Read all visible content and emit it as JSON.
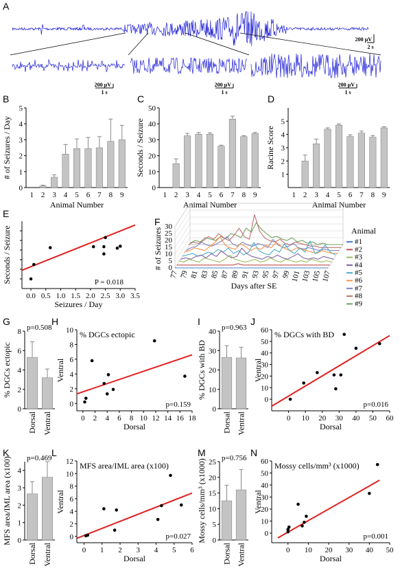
{
  "colors": {
    "eeg": "#1d1dd6",
    "bar": "#c4c4c4",
    "regression": "#e02020",
    "grid": "#bbbbbb",
    "series": [
      "#4a7fc1",
      "#c0504d",
      "#9bbb59",
      "#8064a2",
      "#4bacc6",
      "#f79646",
      "#7f7fbf",
      "#c07070",
      "#70a060"
    ]
  },
  "chart_data": [
    {
      "panel": "A",
      "type": "line",
      "scale_bars": {
        "main": [
          "200 µV",
          "2 s"
        ],
        "zoom1": [
          "200 µV",
          "1 s"
        ],
        "zoom2": [
          "200 µV",
          "1 s"
        ],
        "zoom3": [
          "200 µV",
          "1 s"
        ]
      }
    },
    {
      "panel": "B",
      "type": "bar",
      "ylabel": "# of Seizures / Day",
      "xlabel": "Animal Number",
      "categories": [
        "1",
        "2",
        "3",
        "4",
        "5",
        "6",
        "7",
        "8",
        "9"
      ],
      "values": [
        0,
        0.1,
        0.65,
        2.1,
        2.45,
        2.45,
        2.5,
        2.9,
        3.0
      ],
      "errors": [
        0,
        0.05,
        0.15,
        0.6,
        0.6,
        0.7,
        0.7,
        1.4,
        0.9
      ],
      "ylim": [
        0,
        5
      ],
      "yticks": [
        "0",
        "1",
        "2",
        "3",
        "4",
        "5"
      ]
    },
    {
      "panel": "C",
      "type": "bar",
      "ylabel": "Seconds / Seizure",
      "xlabel": "Animal Number",
      "categories": [
        "1",
        "2",
        "3",
        "4",
        "5",
        "6",
        "7",
        "8",
        "9"
      ],
      "values": [
        0,
        15,
        32.5,
        33.5,
        33.5,
        26,
        43,
        32,
        34
      ],
      "errors": [
        0,
        3,
        1.5,
        1,
        0.8,
        0.6,
        1.8,
        0.6,
        0.6
      ],
      "ylim": [
        0,
        50
      ],
      "yticks": [
        "0",
        "10",
        "20",
        "30",
        "40",
        "50"
      ]
    },
    {
      "panel": "D",
      "type": "bar",
      "ylabel": "Racine Score",
      "xlabel": "Animal Number",
      "categories": [
        "1",
        "2",
        "3",
        "4",
        "5",
        "6",
        "7",
        "8",
        "9"
      ],
      "values": [
        0,
        2.0,
        3.3,
        4.4,
        4.7,
        3.85,
        4.1,
        3.8,
        4.5
      ],
      "errors": [
        0,
        0.45,
        0.35,
        0.1,
        0.08,
        0.12,
        0.15,
        0.12,
        0.08
      ],
      "ylim": [
        0,
        6
      ],
      "yticks": [
        "1",
        "2",
        "3",
        "4",
        "5"
      ]
    },
    {
      "panel": "E",
      "type": "scatter",
      "xlabel": "Seizures / Day",
      "ylabel": "Seconds / Seizure",
      "annotation": "P = 0.018",
      "x": [
        0,
        0.1,
        0.65,
        2.1,
        2.45,
        2.45,
        2.5,
        2.9,
        3.0
      ],
      "y": [
        0,
        15,
        32.5,
        33.5,
        33.5,
        26,
        43,
        32,
        34
      ],
      "fit": [
        [
          -0.3,
          9.0
        ],
        [
          3.5,
          56.0
        ]
      ],
      "xlim": [
        -0.3,
        3.5
      ],
      "ylim": [
        -10,
        60
      ],
      "xticks": [
        "0.0",
        "0.5",
        "1.0",
        "1.5",
        "2.0",
        "2.5",
        "3.0",
        "3.5"
      ]
    },
    {
      "panel": "F",
      "type": "line",
      "xlabel": "Days after SE",
      "ylabel": "# of Seizures",
      "legend_title": "Animal",
      "series_names": [
        "#1",
        "#2",
        "#3",
        "#4",
        "#5",
        "#6",
        "#7",
        "#8",
        "#9"
      ],
      "xticks": [
        "77",
        "79",
        "81",
        "83",
        "85",
        "87",
        "89",
        "91",
        "93",
        "95",
        "97",
        "99",
        "101",
        "103",
        "105",
        "107"
      ],
      "zticks": [
        "0",
        "5",
        "10",
        "15",
        "20",
        "25",
        "30"
      ],
      "series_values": [
        [
          0,
          0,
          0,
          0,
          0,
          0,
          0,
          0,
          0,
          0,
          0,
          0,
          0,
          0,
          0,
          0,
          0,
          0,
          0,
          0,
          0,
          0,
          0,
          0,
          0,
          0,
          0,
          0,
          0,
          0,
          0
        ],
        [
          0,
          0,
          0,
          0,
          0,
          0,
          0,
          0,
          0,
          0,
          0,
          0,
          1,
          0,
          0,
          0,
          0,
          0,
          0,
          0,
          0,
          0,
          0,
          0,
          0,
          0,
          0,
          0,
          0,
          0,
          0
        ],
        [
          1,
          0,
          2,
          1,
          0,
          3,
          2,
          1,
          0,
          2,
          5,
          2,
          1,
          0,
          1,
          2,
          0,
          1,
          3,
          1,
          0,
          2,
          1,
          0,
          1,
          0,
          2,
          1,
          0,
          1,
          0
        ],
        [
          0,
          1,
          0,
          2,
          3,
          1,
          4,
          2,
          6,
          3,
          1,
          2,
          8,
          4,
          2,
          1,
          0,
          2,
          1,
          3,
          1,
          0,
          2,
          4,
          1,
          0,
          1,
          0,
          2,
          1,
          0
        ],
        [
          0,
          1,
          2,
          0,
          1,
          3,
          2,
          5,
          3,
          6,
          2,
          4,
          1,
          3,
          10,
          4,
          2,
          1,
          5,
          3,
          9,
          4,
          2,
          6,
          3,
          11,
          2,
          4,
          8,
          3,
          1
        ],
        [
          1,
          2,
          4,
          3,
          2,
          5,
          8,
          12,
          6,
          4,
          3,
          7,
          5,
          2,
          4,
          3,
          6,
          4,
          8,
          5,
          3,
          2,
          4,
          3,
          2,
          1,
          0,
          2,
          1,
          0,
          0
        ],
        [
          0,
          2,
          3,
          6,
          4,
          3,
          5,
          7,
          10,
          5,
          3,
          6,
          4,
          3,
          5,
          4,
          2,
          8,
          4,
          2,
          3,
          5,
          2,
          1,
          2,
          1,
          0,
          1,
          0,
          0,
          0
        ],
        [
          2,
          4,
          3,
          5,
          8,
          6,
          10,
          7,
          5,
          9,
          14,
          8,
          6,
          24,
          12,
          7,
          5,
          4,
          6,
          3,
          2,
          4,
          3,
          2,
          1,
          1,
          0,
          0,
          0,
          0,
          0
        ],
        [
          1,
          3,
          2,
          5,
          4,
          3,
          6,
          4,
          8,
          7,
          5,
          12,
          9,
          16,
          11,
          8,
          5,
          6,
          4,
          3,
          5,
          2,
          3,
          1,
          2,
          0,
          1,
          0,
          0,
          0,
          0
        ]
      ]
    },
    {
      "panel": "G",
      "type": "bar",
      "ylabel": "% DGCs ectopic",
      "annotation": "p=0.508",
      "categories": [
        "Dorsal",
        "Ventral"
      ],
      "values": [
        5.3,
        3.2
      ],
      "errors": [
        1.6,
        0.9
      ],
      "ylim": [
        0,
        8
      ],
      "yticks": [
        "0",
        "2",
        "4",
        "6",
        "8"
      ]
    },
    {
      "panel": "H",
      "type": "scatter",
      "title": "% DGCs ectopic",
      "xlabel": "Dorsal",
      "ylabel": "Ventral",
      "annotation": "p=0.159",
      "x": [
        0.3,
        0.5,
        1.5,
        3.5,
        4.0,
        4.2,
        5.0,
        11.8,
        16.8
      ],
      "y": [
        0.2,
        0.7,
        5.8,
        2.7,
        1.3,
        3.9,
        1.9,
        8.5,
        3.7
      ],
      "fit": [
        [
          -1,
          1.3
        ],
        [
          18,
          6.6
        ]
      ],
      "xlim": [
        -1,
        18
      ],
      "ylim": [
        -1,
        10
      ],
      "xticks": [
        "0",
        "2",
        "4",
        "6",
        "8",
        "10",
        "12",
        "14",
        "16",
        "18"
      ],
      "yticks": [
        "0",
        "2",
        "4",
        "6",
        "8",
        "10"
      ]
    },
    {
      "panel": "I",
      "type": "bar",
      "ylabel": "% DGCs with BD",
      "annotation": "p=0.963",
      "categories": [
        "Dorsal",
        "Ventral"
      ],
      "values": [
        26.5,
        26.2
      ],
      "errors": [
        6,
        5.5
      ],
      "ylim": [
        0,
        40
      ],
      "yticks": [
        "0",
        "10",
        "20",
        "30",
        "40"
      ]
    },
    {
      "panel": "J",
      "type": "scatter",
      "title": "% DGCs with BD",
      "xlabel": "Dorsal",
      "ylabel": "Ventral",
      "annotation": "p=0.016",
      "x": [
        1,
        9,
        17,
        27,
        28,
        31,
        33,
        40,
        54
      ],
      "y": [
        0,
        14,
        23,
        21,
        9,
        21,
        56,
        44,
        48
      ],
      "fit": [
        [
          -10,
          -6
        ],
        [
          60,
          55
        ]
      ],
      "xlim": [
        -10,
        60
      ],
      "ylim": [
        -10,
        60
      ],
      "xticks": [
        "0",
        "10",
        "20",
        "30",
        "40",
        "50",
        "60"
      ],
      "yticks": [
        "0",
        "10",
        "20",
        "30",
        "40",
        "50",
        "60"
      ]
    },
    {
      "panel": "K",
      "type": "bar",
      "ylabel": "MFS area/IML area (x100)",
      "annotation": "p=0.469",
      "categories": [
        "Dorsal",
        "Ventral"
      ],
      "values": [
        2.65,
        3.6
      ],
      "errors": [
        0.7,
        0.9
      ],
      "ylim": [
        0,
        4.5
      ],
      "yticks": [
        "0",
        "1",
        "2",
        "3",
        "4"
      ]
    },
    {
      "panel": "L",
      "type": "scatter",
      "title": "MFS area/IML area (x100)",
      "xlabel": "Dorsal",
      "ylabel": "Ventral",
      "annotation": "p=0.027",
      "x": [
        0.1,
        0.2,
        1.1,
        1.7,
        1.8,
        4.1,
        4.3,
        4.8,
        5.4
      ],
      "y": [
        0.1,
        0.2,
        4.4,
        1.0,
        4.2,
        2.7,
        4.9,
        9.7,
        5.0
      ],
      "fit": [
        [
          -0.4,
          -0.3
        ],
        [
          6,
          6.9
        ]
      ],
      "xlim": [
        -0.4,
        6
      ],
      "ylim": [
        -1,
        12
      ],
      "xticks": [
        "0",
        "1",
        "2",
        "3",
        "4",
        "5",
        "6"
      ],
      "yticks": [
        "0",
        "2",
        "4",
        "6",
        "8",
        "10",
        "12"
      ]
    },
    {
      "panel": "M",
      "type": "bar",
      "ylabel": "Mossy cells/mm³ (x1000)",
      "annotation": "p=0.756",
      "categories": [
        "Dorsal",
        "Ventral"
      ],
      "values": [
        12.5,
        16
      ],
      "errors": [
        5,
        6.5
      ],
      "ylim": [
        0,
        25
      ],
      "yticks": [
        "0",
        "5",
        "10",
        "15",
        "20",
        "25"
      ]
    },
    {
      "panel": "N",
      "type": "scatter",
      "title": "Mossy cells/mm³ (x1000)",
      "xlabel": "Dorsal",
      "ylabel": "Ventral",
      "annotation": "p=0.001",
      "x": [
        0,
        0,
        0.5,
        5,
        7,
        8,
        9,
        40,
        44
      ],
      "y": [
        1,
        3,
        5,
        24,
        6,
        9,
        14,
        33,
        57
      ],
      "fit": [
        [
          -5,
          -4
        ],
        [
          45,
          44
        ]
      ],
      "xlim": [
        -8,
        50
      ],
      "ylim": [
        -8,
        60
      ],
      "xticks": [
        "0",
        "10",
        "20",
        "30",
        "40",
        "50"
      ],
      "yticks": [
        "0",
        "10",
        "20",
        "30",
        "40",
        "50",
        "60"
      ]
    }
  ]
}
